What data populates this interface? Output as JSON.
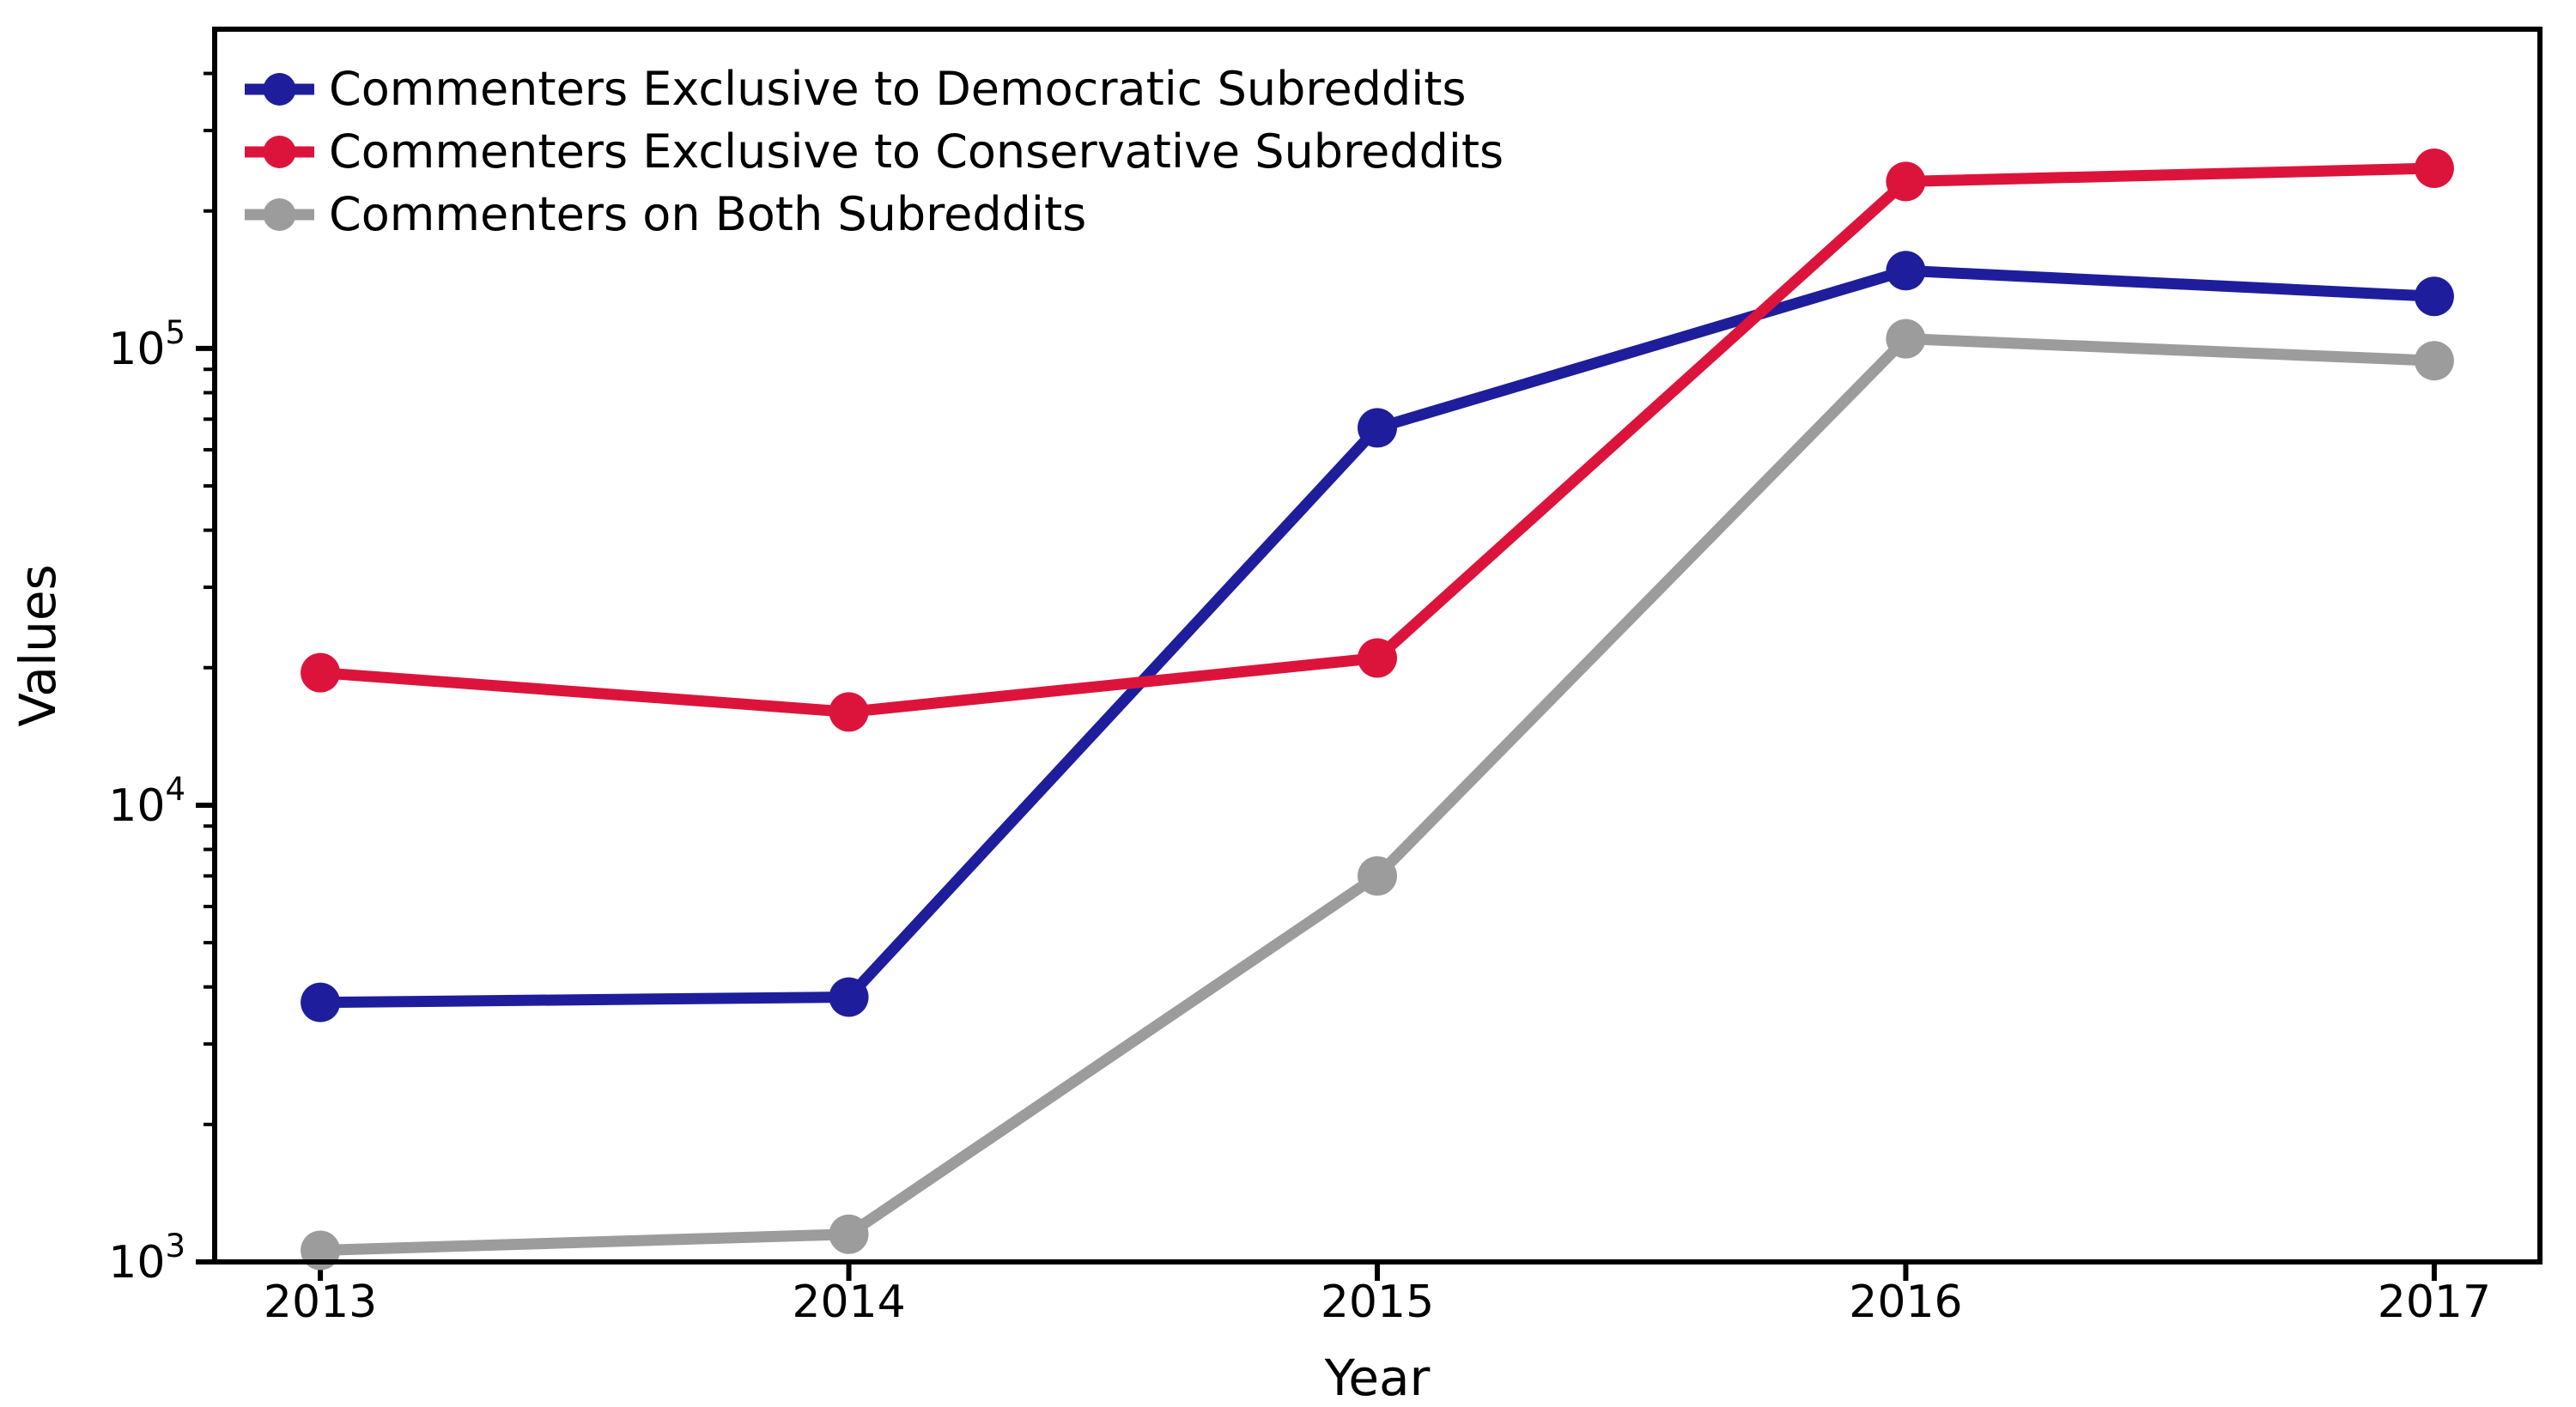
{
  "figure": {
    "background": "#ffffff",
    "text_color": "#000000",
    "spine_color": "#000000"
  },
  "chart_data": {
    "type": "line",
    "title": "",
    "xlabel": "Year",
    "ylabel": "Values",
    "x": [
      2013,
      2014,
      2015,
      2016,
      2017
    ],
    "x_tick_labels": [
      "2013",
      "2014",
      "2015",
      "2016",
      "2017"
    ],
    "y_scale": "log",
    "ylim": [
      1000,
      500000
    ],
    "y_ticks": [
      {
        "value": 1000,
        "base": "10",
        "exp": "3"
      },
      {
        "value": 10000,
        "base": "10",
        "exp": "4"
      },
      {
        "value": 100000,
        "base": "10",
        "exp": "5"
      }
    ],
    "grid": false,
    "legend_position": "upper-left",
    "series": [
      {
        "name": "Commenters Exclusive to Democratic Subreddits",
        "color": "#1e1e9c",
        "values": [
          3700,
          3800,
          67000,
          148000,
          130000
        ]
      },
      {
        "name": "Commenters Exclusive to Conservative Subreddits",
        "color": "#dc143c",
        "values": [
          19500,
          16000,
          21000,
          232000,
          248000
        ]
      },
      {
        "name": "Commenters on Both Subreddits",
        "color": "#9c9c9c",
        "values": [
          1060,
          1150,
          7000,
          105000,
          94000
        ]
      }
    ]
  }
}
